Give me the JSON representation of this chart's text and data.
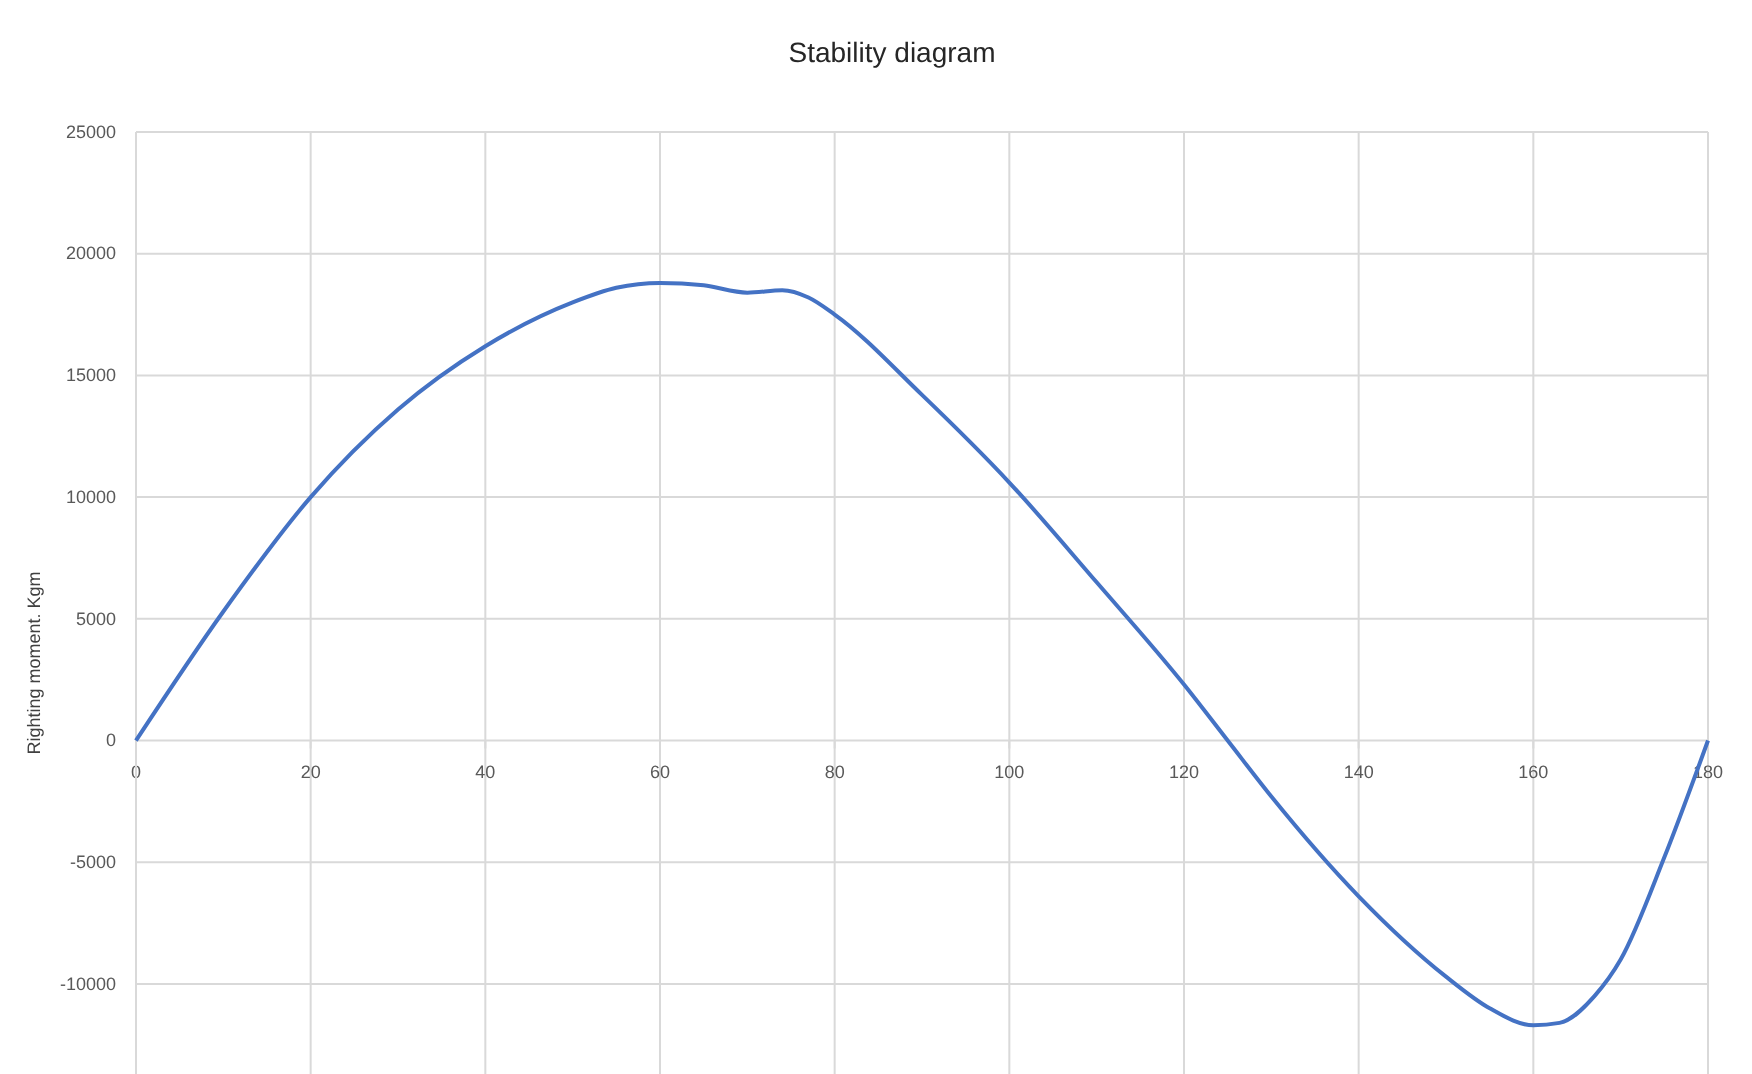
{
  "chart_data": {
    "type": "line",
    "title": "Stability diagram",
    "ylabel": "Righting moment. Kgm",
    "x": [
      0,
      10,
      20,
      30,
      40,
      50,
      55,
      60,
      65,
      70,
      74,
      77,
      80,
      90,
      100,
      110,
      120,
      125,
      130,
      140,
      150,
      155,
      160,
      163,
      167,
      170,
      175,
      180
    ],
    "series": [
      {
        "color": "#4472c4",
        "values": [
          0,
          5300,
          10000,
          13600,
          16200,
          18000,
          18600,
          18800,
          18700,
          18400,
          18500,
          18200,
          17500,
          14200,
          10600,
          6500,
          2300,
          0,
          -2300,
          -6400,
          -9700,
          -11000,
          -11700,
          -11600,
          -10500,
          -9000,
          -4800,
          0
        ]
      }
    ],
    "xlim": [
      0,
      180
    ],
    "xticks": [
      0,
      20,
      40,
      60,
      80,
      100,
      120,
      140,
      160,
      180
    ],
    "ylim": [
      -13700,
      25000
    ],
    "yticks": [
      -10000,
      -5000,
      0,
      5000,
      10000,
      15000,
      20000,
      25000
    ],
    "grid": true,
    "marker": "none",
    "line_style": "solid"
  }
}
